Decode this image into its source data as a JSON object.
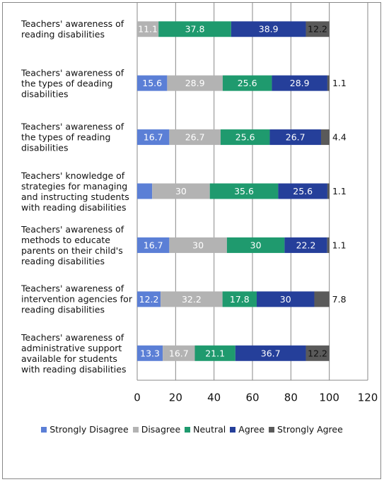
{
  "chart_data": {
    "type": "stacked-bar-horizontal",
    "categories": [
      "Teachers' awareness of reading disabilities",
      "Teachers' awareness of the types of deading disabilities",
      "Teachers' awareness of the types of reading disabilities",
      "Teachers' knowledge of strategies for managing and instructing students with reading disabilities",
      "Teachers' awareness of methods to educate parents on their child's reading disabilities",
      "Teachers' awareness of intervention agencies for reading disabilities",
      "Teachers' awareness of administrative support available for students with reading disabilities"
    ],
    "series": [
      {
        "name": "Strongly Disagree",
        "color": "#5b7fd6",
        "values": [
          null,
          15.6,
          16.7,
          7.8,
          16.7,
          12.2,
          13.3
        ]
      },
      {
        "name": "Disagree",
        "color": "#b3b3b3",
        "values": [
          11.1,
          28.9,
          26.7,
          30,
          30,
          32.2,
          16.7
        ]
      },
      {
        "name": "Neutral",
        "color": "#1f9a6e",
        "values": [
          37.8,
          25.6,
          25.6,
          35.6,
          30,
          17.8,
          21.1
        ]
      },
      {
        "name": "Agree",
        "color": "#253f9a",
        "values": [
          38.9,
          28.9,
          26.7,
          25.6,
          22.2,
          30,
          36.7
        ]
      },
      {
        "name": "Strongly Agree",
        "color": "#5a5a5a",
        "values": [
          12.2,
          1.1,
          4.4,
          1.1,
          1.1,
          7.8,
          12.2
        ]
      }
    ],
    "xlim": [
      0,
      120
    ],
    "xticks": [
      0,
      20,
      40,
      60,
      80,
      100,
      120
    ],
    "grid": true,
    "legend": "bottom"
  }
}
